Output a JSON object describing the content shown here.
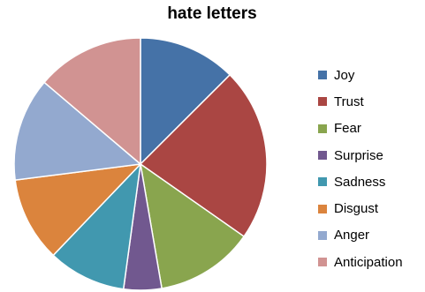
{
  "chart_data": {
    "type": "pie",
    "title": "hate letters",
    "legend_position": "right",
    "start_angle": "12 o'clock, clockwise",
    "categories": [
      "Joy",
      "Trust",
      "Fear",
      "Surprise",
      "Sadness",
      "Disgust",
      "Anger",
      "Anticipation"
    ],
    "values": [
      0.125,
      0.2222,
      0.1257,
      0.0485,
      0.0998,
      0.1084,
      0.1324,
      0.1378
    ],
    "colors": [
      "#4572A7",
      "#AA4643",
      "#89A54E",
      "#71588F",
      "#4198AF",
      "#DB843D",
      "#93A9CF",
      "#D19392"
    ]
  }
}
